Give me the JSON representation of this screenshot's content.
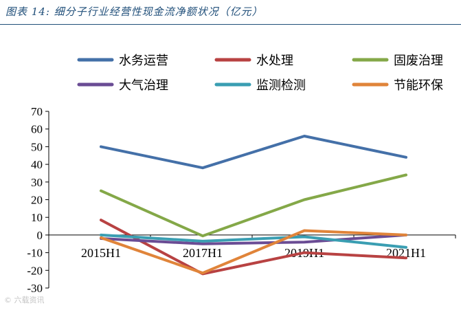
{
  "figure": {
    "title": "图表 14:  细分子行业经营性现金流净额状况（亿元）",
    "watermark": "© 六载资讯"
  },
  "chart_data": {
    "type": "line",
    "title": "",
    "xlabel": "",
    "ylabel": "",
    "categories": [
      "2015H1",
      "2017H1",
      "2019H1",
      "2021H1"
    ],
    "ylim": [
      -30,
      70
    ],
    "yticks": [
      -30,
      -20,
      -10,
      0,
      10,
      20,
      30,
      40,
      50,
      60,
      70
    ],
    "grid": false,
    "legend_position": "top",
    "series": [
      {
        "name": "水务运营",
        "color": "#4470a8",
        "values": [
          50,
          38,
          56,
          44
        ]
      },
      {
        "name": "水处理",
        "color": "#b84242",
        "values": [
          8.5,
          -22,
          -10,
          -13
        ]
      },
      {
        "name": "固废治理",
        "color": "#84a848",
        "values": [
          25,
          -0.5,
          20,
          34
        ]
      },
      {
        "name": "大气治理",
        "color": "#6a4c94",
        "values": [
          -2,
          -5,
          -4,
          0
        ]
      },
      {
        "name": "监测检测",
        "color": "#3a9eb2",
        "values": [
          0,
          -3.5,
          -1,
          -7
        ]
      },
      {
        "name": "节能环保",
        "color": "#e0843a",
        "values": [
          -1.5,
          -21.5,
          2.5,
          0
        ]
      }
    ]
  }
}
